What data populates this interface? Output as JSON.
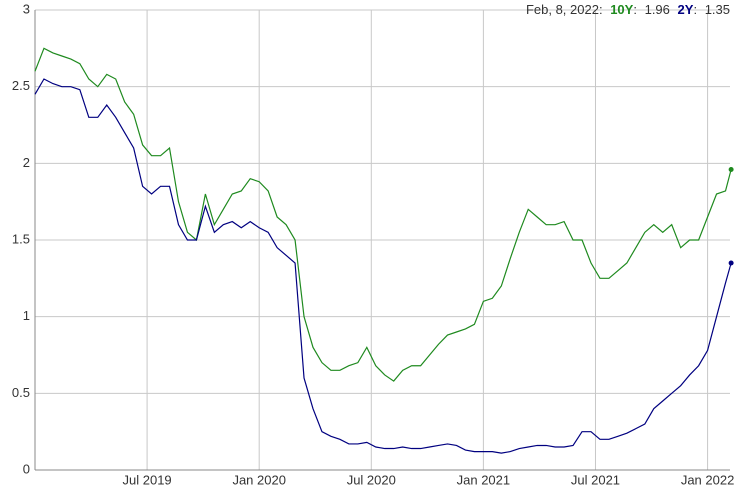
{
  "chart_data": {
    "type": "line",
    "annotation": "Feb, 8, 2022:",
    "x": [
      2019.0,
      2019.04,
      2019.08,
      2019.12,
      2019.16,
      2019.2,
      2019.24,
      2019.28,
      2019.32,
      2019.36,
      2019.4,
      2019.44,
      2019.48,
      2019.52,
      2019.56,
      2019.6,
      2019.64,
      2019.68,
      2019.72,
      2019.76,
      2019.8,
      2019.84,
      2019.88,
      2019.92,
      2019.96,
      2020.0,
      2020.04,
      2020.08,
      2020.12,
      2020.16,
      2020.2,
      2020.24,
      2020.28,
      2020.32,
      2020.36,
      2020.4,
      2020.44,
      2020.48,
      2020.52,
      2020.56,
      2020.6,
      2020.64,
      2020.68,
      2020.72,
      2020.76,
      2020.8,
      2020.84,
      2020.88,
      2020.92,
      2020.96,
      2021.0,
      2021.04,
      2021.08,
      2021.12,
      2021.16,
      2021.2,
      2021.24,
      2021.28,
      2021.32,
      2021.36,
      2021.4,
      2021.44,
      2021.48,
      2021.52,
      2021.56,
      2021.6,
      2021.64,
      2021.68,
      2021.72,
      2021.76,
      2021.8,
      2021.84,
      2021.88,
      2021.92,
      2021.96,
      2022.0,
      2022.04,
      2022.08,
      2022.105
    ],
    "series": [
      {
        "name": "10Y",
        "color": "#1f8a1f",
        "values": [
          2.6,
          2.75,
          2.72,
          2.7,
          2.68,
          2.65,
          2.55,
          2.5,
          2.58,
          2.55,
          2.4,
          2.32,
          2.12,
          2.05,
          2.05,
          2.1,
          1.75,
          1.55,
          1.5,
          1.8,
          1.6,
          1.7,
          1.8,
          1.82,
          1.9,
          1.88,
          1.82,
          1.65,
          1.6,
          1.5,
          1.0,
          0.8,
          0.7,
          0.65,
          0.65,
          0.68,
          0.7,
          0.8,
          0.68,
          0.62,
          0.58,
          0.65,
          0.68,
          0.68,
          0.75,
          0.82,
          0.88,
          0.9,
          0.92,
          0.95,
          1.1,
          1.12,
          1.2,
          1.38,
          1.55,
          1.7,
          1.65,
          1.6,
          1.6,
          1.62,
          1.5,
          1.5,
          1.35,
          1.25,
          1.25,
          1.3,
          1.35,
          1.45,
          1.55,
          1.6,
          1.55,
          1.6,
          1.45,
          1.5,
          1.5,
          1.65,
          1.8,
          1.82,
          1.96
        ]
      },
      {
        "name": "2Y",
        "color": "#000080",
        "values": [
          2.45,
          2.55,
          2.52,
          2.5,
          2.5,
          2.48,
          2.3,
          2.3,
          2.38,
          2.3,
          2.2,
          2.1,
          1.85,
          1.8,
          1.85,
          1.85,
          1.6,
          1.5,
          1.5,
          1.72,
          1.55,
          1.6,
          1.62,
          1.58,
          1.62,
          1.58,
          1.55,
          1.45,
          1.4,
          1.35,
          0.6,
          0.4,
          0.25,
          0.22,
          0.2,
          0.17,
          0.17,
          0.18,
          0.15,
          0.14,
          0.14,
          0.15,
          0.14,
          0.14,
          0.15,
          0.16,
          0.17,
          0.16,
          0.13,
          0.12,
          0.12,
          0.12,
          0.11,
          0.12,
          0.14,
          0.15,
          0.16,
          0.16,
          0.15,
          0.15,
          0.16,
          0.25,
          0.25,
          0.2,
          0.2,
          0.22,
          0.24,
          0.27,
          0.3,
          0.4,
          0.45,
          0.5,
          0.55,
          0.62,
          0.68,
          0.78,
          1.0,
          1.22,
          1.35
        ]
      }
    ],
    "xlim": [
      2019.0,
      2022.1
    ],
    "xticks": [
      {
        "value": 2019.5,
        "label": "Jul 2019"
      },
      {
        "value": 2020.0,
        "label": "Jan 2020"
      },
      {
        "value": 2020.5,
        "label": "Jul 2020"
      },
      {
        "value": 2021.0,
        "label": "Jan 2021"
      },
      {
        "value": 2021.5,
        "label": "Jul 2021"
      },
      {
        "value": 2022.0,
        "label": "Jan 2022"
      }
    ],
    "ylim": [
      0,
      3
    ],
    "yticks": [
      0,
      0.5,
      1,
      1.5,
      2,
      2.5,
      3
    ],
    "grid": true
  }
}
